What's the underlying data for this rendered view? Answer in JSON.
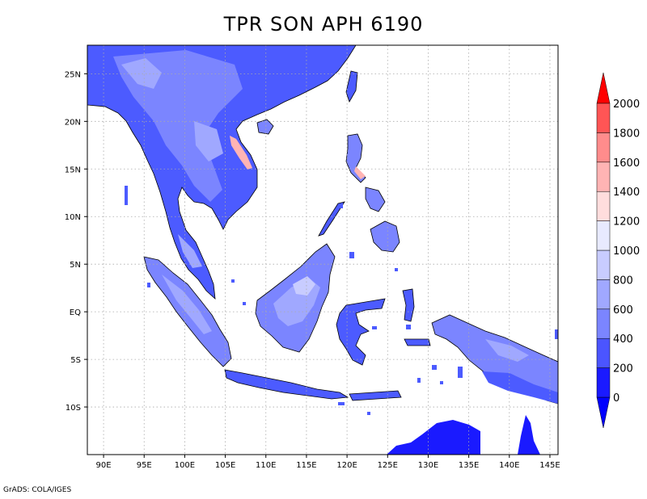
{
  "title": "TPR SON APH 6190",
  "footer": "GrADS: COLA/IGES",
  "map": {
    "lon_range": [
      88,
      146
    ],
    "lat_range": [
      -15,
      28
    ],
    "lon_ticks": [
      {
        "value": 90,
        "label": "90E"
      },
      {
        "value": 95,
        "label": "95E"
      },
      {
        "value": 100,
        "label": "100E"
      },
      {
        "value": 105,
        "label": "105E"
      },
      {
        "value": 110,
        "label": "110E"
      },
      {
        "value": 115,
        "label": "115E"
      },
      {
        "value": 120,
        "label": "120E"
      },
      {
        "value": 125,
        "label": "125E"
      },
      {
        "value": 130,
        "label": "130E"
      },
      {
        "value": 135,
        "label": "135E"
      },
      {
        "value": 140,
        "label": "140E"
      },
      {
        "value": 145,
        "label": "145E"
      }
    ],
    "lat_ticks": [
      {
        "value": 25,
        "label": "25N"
      },
      {
        "value": 20,
        "label": "20N"
      },
      {
        "value": 15,
        "label": "15N"
      },
      {
        "value": 10,
        "label": "10N"
      },
      {
        "value": 5,
        "label": "5N"
      },
      {
        "value": 0,
        "label": "EQ"
      },
      {
        "value": -5,
        "label": "5S"
      },
      {
        "value": -10,
        "label": "10S"
      }
    ],
    "grid": true,
    "ocean_color": "#ffffff",
    "land_base_color": "#4c5bff"
  },
  "colorbar": {
    "levels": [
      "0",
      "200",
      "400",
      "600",
      "800",
      "1000",
      "1200",
      "1400",
      "1600",
      "1800",
      "2000"
    ],
    "colors": [
      "#1a1aff",
      "#4b55ff",
      "#7b85ff",
      "#a0a8ff",
      "#c8ccff",
      "#e8eaff",
      "#ffdddd",
      "#ffb4b4",
      "#ff8c8c",
      "#ff5555",
      "#ff1a1a"
    ],
    "under_color": "#0000ff",
    "over_color": "#ff0000"
  }
}
